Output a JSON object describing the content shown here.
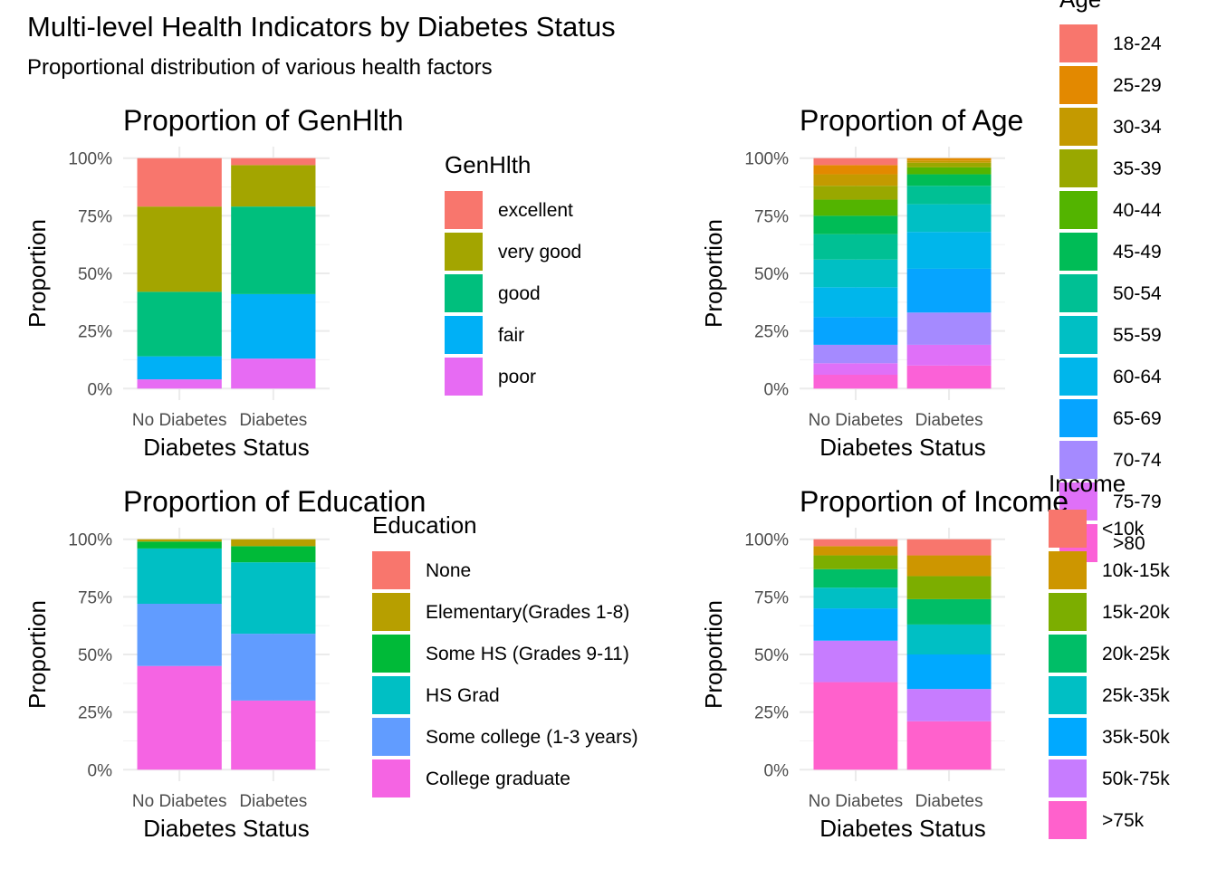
{
  "page": {
    "title": "Multi-level Health Indicators by Diabetes Status",
    "subtitle": "Proportional distribution of various health factors"
  },
  "chart_data": [
    {
      "type": "bar",
      "stacked": true,
      "title": "Proportion of GenHlth",
      "xlabel": "Diabetes Status",
      "ylabel": "Proportion",
      "ylim": [
        0,
        1
      ],
      "yticks": [
        "0%",
        "25%",
        "50%",
        "75%",
        "100%"
      ],
      "categories": [
        "No Diabetes",
        "Diabetes"
      ],
      "legend_title": "GenHlth",
      "series": [
        {
          "name": "excellent",
          "color": "#F8766D",
          "values": [
            0.21,
            0.03
          ]
        },
        {
          "name": "very good",
          "color": "#A3A500",
          "values": [
            0.37,
            0.18
          ]
        },
        {
          "name": "good",
          "color": "#00BF7D",
          "values": [
            0.28,
            0.38
          ]
        },
        {
          "name": "fair",
          "color": "#00B0F6",
          "values": [
            0.1,
            0.28
          ]
        },
        {
          "name": "poor",
          "color": "#E76BF3",
          "values": [
            0.04,
            0.13
          ]
        }
      ]
    },
    {
      "type": "bar",
      "stacked": true,
      "title": "Proportion of Age",
      "xlabel": "Diabetes Status",
      "ylabel": "Proportion",
      "ylim": [
        0,
        1
      ],
      "yticks": [
        "0%",
        "25%",
        "50%",
        "75%",
        "100%"
      ],
      "categories": [
        "No Diabetes",
        "Diabetes"
      ],
      "legend_title": "Age",
      "series": [
        {
          "name": "18-24",
          "color": "#F8766D",
          "values": [
            0.03,
            0.0
          ]
        },
        {
          "name": "25-29",
          "color": "#E38900",
          "values": [
            0.04,
            0.01
          ]
        },
        {
          "name": "30-34",
          "color": "#C49A00",
          "values": [
            0.05,
            0.01
          ]
        },
        {
          "name": "35-39",
          "color": "#99A800",
          "values": [
            0.06,
            0.02
          ]
        },
        {
          "name": "40-44",
          "color": "#53B400",
          "values": [
            0.07,
            0.03
          ]
        },
        {
          "name": "45-49",
          "color": "#00BC56",
          "values": [
            0.08,
            0.05
          ]
        },
        {
          "name": "50-54",
          "color": "#00C094",
          "values": [
            0.11,
            0.08
          ]
        },
        {
          "name": "55-59",
          "color": "#00BFC4",
          "values": [
            0.12,
            0.12
          ]
        },
        {
          "name": "60-64",
          "color": "#00B6EB",
          "values": [
            0.13,
            0.16
          ]
        },
        {
          "name": "65-69",
          "color": "#06A4FF",
          "values": [
            0.12,
            0.19
          ]
        },
        {
          "name": "70-74",
          "color": "#A58AFF",
          "values": [
            0.08,
            0.14
          ]
        },
        {
          "name": "75-79",
          "color": "#DF70F8",
          "values": [
            0.05,
            0.09
          ]
        },
        {
          "name": ">80",
          "color": "#FB61D7",
          "values": [
            0.06,
            0.1
          ]
        }
      ]
    },
    {
      "type": "bar",
      "stacked": true,
      "title": "Proportion of Education",
      "xlabel": "Diabetes Status",
      "ylabel": "Proportion",
      "ylim": [
        0,
        1
      ],
      "yticks": [
        "0%",
        "25%",
        "50%",
        "75%",
        "100%"
      ],
      "categories": [
        "No Diabetes",
        "Diabetes"
      ],
      "legend_title": "Education",
      "series": [
        {
          "name": "None",
          "color": "#F8766D",
          "values": [
            0.0,
            0.0
          ]
        },
        {
          "name": "Elementary(Grades 1-8)",
          "color": "#B79F00",
          "values": [
            0.01,
            0.03
          ]
        },
        {
          "name": "Some HS (Grades 9-11)",
          "color": "#00BA38",
          "values": [
            0.03,
            0.07
          ]
        },
        {
          "name": "HS Grad",
          "color": "#00BFC4",
          "values": [
            0.24,
            0.31
          ]
        },
        {
          "name": "Some college (1-3 years)",
          "color": "#619CFF",
          "values": [
            0.27,
            0.29
          ]
        },
        {
          "name": "College graduate",
          "color": "#F564E3",
          "values": [
            0.45,
            0.3
          ]
        }
      ]
    },
    {
      "type": "bar",
      "stacked": true,
      "title": "Proportion of Income",
      "xlabel": "Diabetes Status",
      "ylabel": "Proportion",
      "ylim": [
        0,
        1
      ],
      "yticks": [
        "0%",
        "25%",
        "50%",
        "75%",
        "100%"
      ],
      "categories": [
        "No Diabetes",
        "Diabetes"
      ],
      "legend_title": "Income",
      "series": [
        {
          "name": "<10k",
          "color": "#F8766D",
          "values": [
            0.03,
            0.07
          ]
        },
        {
          "name": "10k-15k",
          "color": "#CD9600",
          "values": [
            0.04,
            0.09
          ]
        },
        {
          "name": "15k-20k",
          "color": "#7CAE00",
          "values": [
            0.06,
            0.1
          ]
        },
        {
          "name": "20k-25k",
          "color": "#00BE67",
          "values": [
            0.08,
            0.11
          ]
        },
        {
          "name": "25k-35k",
          "color": "#00BFC4",
          "values": [
            0.09,
            0.13
          ]
        },
        {
          "name": "35k-50k",
          "color": "#00A9FF",
          "values": [
            0.14,
            0.15
          ]
        },
        {
          "name": "50k-75k",
          "color": "#C77CFF",
          "values": [
            0.18,
            0.14
          ]
        },
        {
          "name": ">75k",
          "color": "#FF61CC",
          "values": [
            0.38,
            0.21
          ]
        }
      ]
    }
  ]
}
